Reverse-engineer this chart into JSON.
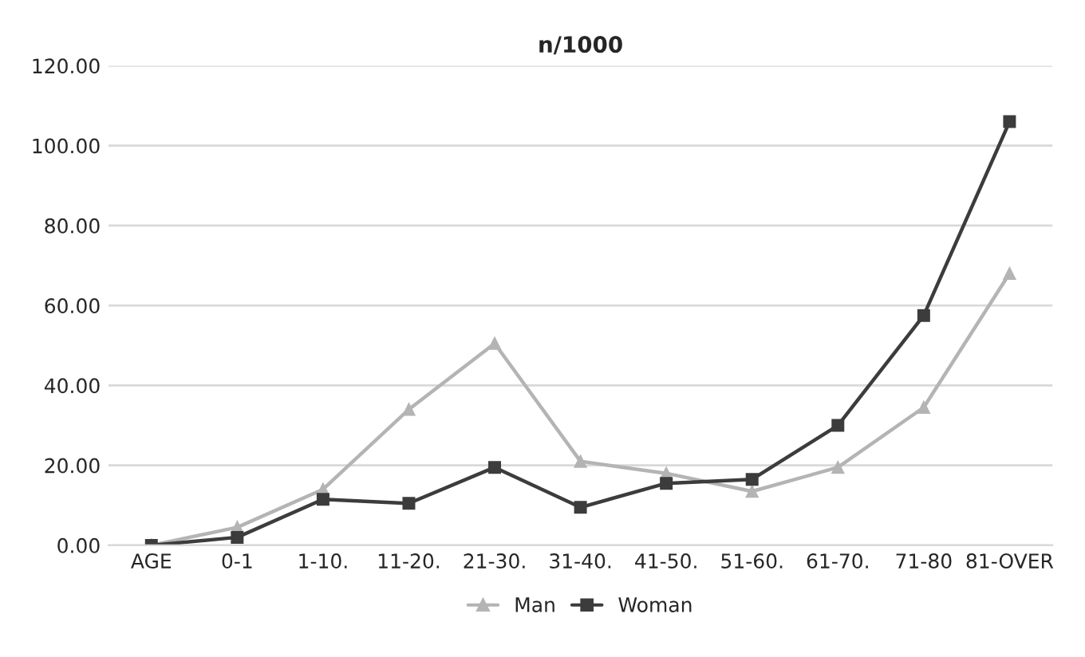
{
  "chart_data": {
    "type": "line",
    "title": "n/1000",
    "categories": [
      "AGE",
      "0-1",
      "1-10.",
      "11-20.",
      "21-30.",
      "31-40.",
      "41-50.",
      "51-60.",
      "61-70.",
      "71-80",
      "81-OVER"
    ],
    "series": [
      {
        "name": "Man",
        "color": "#b4b4b4",
        "marker": "triangle",
        "values": [
          0,
          4.5,
          14,
          34,
          50.5,
          21,
          18,
          13.5,
          19.5,
          34.5,
          68
        ]
      },
      {
        "name": "Woman",
        "color": "#3c3c3c",
        "marker": "square",
        "values": [
          0,
          2,
          11.5,
          10.5,
          19.5,
          9.5,
          15.5,
          16.5,
          30,
          57.5,
          106
        ]
      }
    ],
    "ylim": [
      0,
      120
    ],
    "yticks": [
      {
        "value": 0,
        "label": "0.00"
      },
      {
        "value": 20,
        "label": "20.00"
      },
      {
        "value": 40,
        "label": "40.00"
      },
      {
        "value": 60,
        "label": "60.00"
      },
      {
        "value": 80,
        "label": "80.00"
      },
      {
        "value": 100,
        "label": "100.00"
      },
      {
        "value": 120,
        "label": "120.00"
      }
    ],
    "grid": "y",
    "legend": "bottom",
    "line_style": "solid"
  }
}
